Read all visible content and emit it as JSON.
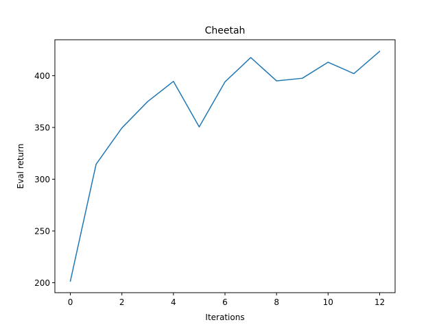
{
  "chart_data": {
    "type": "line",
    "title": "Cheetah",
    "xlabel": "Iterations",
    "ylabel": "Eval return",
    "x": [
      0,
      1,
      2,
      3,
      4,
      5,
      6,
      7,
      8,
      9,
      10,
      11,
      12
    ],
    "series": [
      {
        "name": "Eval return",
        "values": [
          201.5,
          314.5,
          349.5,
          375.0,
          394.5,
          350.5,
          394.0,
          417.5,
          395.0,
          397.5,
          413.0,
          402.0,
          423.5
        ]
      }
    ],
    "xlim": [
      -0.6,
      12.6
    ],
    "ylim": [
      190.4,
      434.7
    ],
    "xticks": [
      0,
      2,
      4,
      6,
      8,
      10,
      12
    ],
    "yticks": [
      200,
      250,
      300,
      350,
      400
    ],
    "grid": false,
    "line_color": "#1f77b4"
  }
}
